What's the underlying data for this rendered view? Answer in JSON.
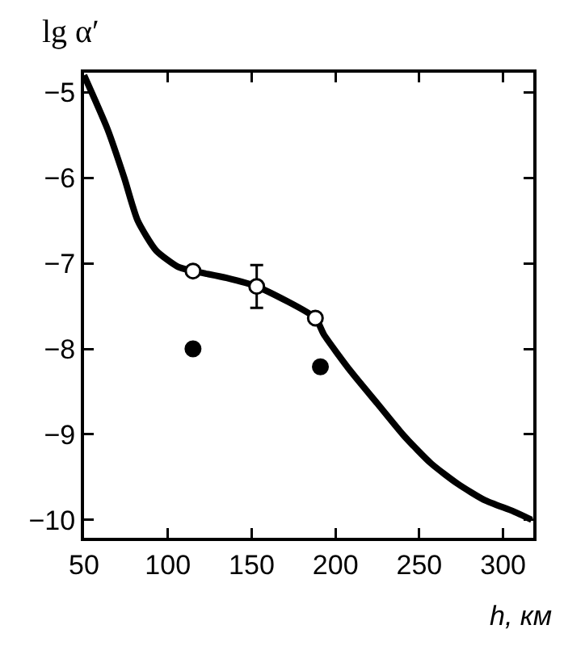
{
  "chart_data": {
    "type": "line",
    "xlabel": "h, км",
    "ylabel": "lg α′",
    "xlim": [
      50,
      318
    ],
    "ylim": [
      -10.21,
      -4.77
    ],
    "xticks": [
      50,
      100,
      150,
      200,
      250,
      300
    ],
    "yticks": [
      -5,
      -6,
      -7,
      -8,
      -9,
      -10
    ],
    "grid": false,
    "series": [
      {
        "color": "#000000",
        "marker": "none",
        "x": [
          50,
          64,
          74,
          82,
          93,
          106,
          115,
          135,
          153,
          188,
          193,
          209,
          225,
          241,
          257,
          273,
          289,
          306,
          317
        ],
        "values": [
          -4.8,
          -5.43,
          -6.0,
          -6.5,
          -6.85,
          -7.04,
          -7.09,
          -7.17,
          -7.27,
          -7.64,
          -7.83,
          -8.26,
          -8.64,
          -9.02,
          -9.34,
          -9.58,
          -9.77,
          -9.9,
          -10.0
        ]
      },
      {
        "type": "scatter",
        "color": "#ffffff",
        "marker": "circle",
        "x": [
          115,
          153,
          188
        ],
        "values": [
          -7.09,
          -7.27,
          -7.64
        ],
        "errors": [
          null,
          0.25,
          null
        ]
      },
      {
        "type": "scatter",
        "color": "#000000",
        "marker": "circle",
        "x": [
          115,
          191
        ],
        "values": [
          -8.0,
          -8.21
        ]
      }
    ]
  }
}
